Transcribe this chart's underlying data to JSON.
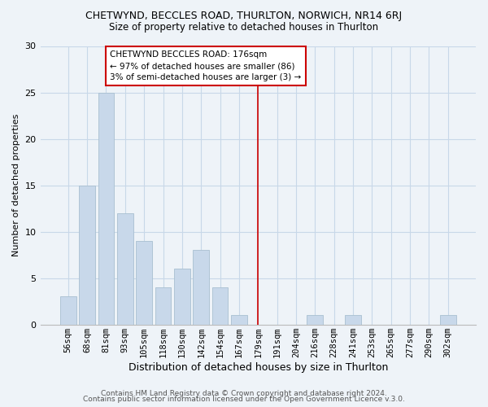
{
  "title": "CHETWYND, BECCLES ROAD, THURLTON, NORWICH, NR14 6RJ",
  "subtitle": "Size of property relative to detached houses in Thurlton",
  "xlabel": "Distribution of detached houses by size in Thurlton",
  "ylabel": "Number of detached properties",
  "footer_lines": [
    "Contains HM Land Registry data © Crown copyright and database right 2024.",
    "Contains public sector information licensed under the Open Government Licence v.3.0."
  ],
  "bin_labels": [
    "56sqm",
    "68sqm",
    "81sqm",
    "93sqm",
    "105sqm",
    "118sqm",
    "130sqm",
    "142sqm",
    "154sqm",
    "167sqm",
    "179sqm",
    "191sqm",
    "204sqm",
    "216sqm",
    "228sqm",
    "241sqm",
    "253sqm",
    "265sqm",
    "277sqm",
    "290sqm",
    "302sqm"
  ],
  "bar_heights": [
    3,
    15,
    25,
    12,
    9,
    4,
    6,
    8,
    4,
    1,
    0,
    0,
    0,
    1,
    0,
    1,
    0,
    0,
    0,
    0,
    1
  ],
  "bar_color": "#c8d8ea",
  "bar_edge_color": "#a8bfd0",
  "reference_line_index": 10,
  "annotation_title": "CHETWYND BECCLES ROAD: 176sqm",
  "annotation_line1": "← 97% of detached houses are smaller (86)",
  "annotation_line2": "3% of semi-detached houses are larger (3) →",
  "annotation_box_color": "#ffffff",
  "annotation_box_edge_color": "#cc0000",
  "reference_line_color": "#cc0000",
  "ylim": [
    0,
    30
  ],
  "yticks": [
    0,
    5,
    10,
    15,
    20,
    25,
    30
  ],
  "grid_color": "#c8d8e8",
  "background_color": "#eef3f8",
  "title_fontsize": 9,
  "subtitle_fontsize": 8.5,
  "xlabel_fontsize": 9,
  "ylabel_fontsize": 8,
  "tick_fontsize": 7.5,
  "footer_fontsize": 6.5,
  "annotation_fontsize": 7.5
}
